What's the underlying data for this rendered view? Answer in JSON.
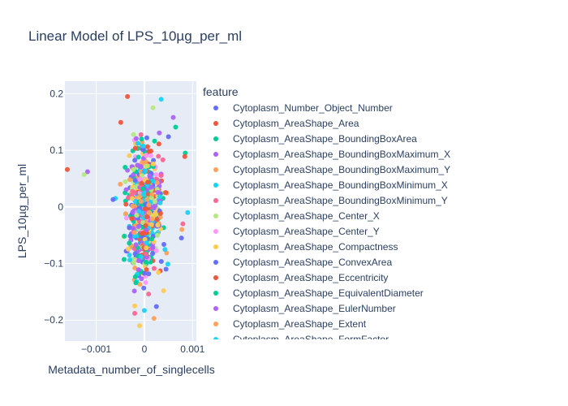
{
  "chart_data": {
    "type": "scatter",
    "title": "Linear Model of LPS_10µg_per_ml",
    "xlabel": "Metadata_number_of_singlecells",
    "ylabel": "LPS_10µg_per_ml",
    "xlim": [
      -0.00165,
      0.00108
    ],
    "ylim": [
      -0.237,
      0.222
    ],
    "x_ticks": [
      {
        "value": -0.001,
        "label": "−0.001"
      },
      {
        "value": 0,
        "label": "0"
      },
      {
        "value": 0.001,
        "label": "0.001"
      }
    ],
    "y_ticks": [
      {
        "value": -0.2,
        "label": "−0.2"
      },
      {
        "value": -0.1,
        "label": "−0.1"
      },
      {
        "value": 0,
        "label": "0"
      },
      {
        "value": 0.1,
        "label": "0.1"
      },
      {
        "value": 0.2,
        "label": "0.2"
      }
    ],
    "grid": true,
    "legend_title": "feature",
    "legend_position": "right",
    "series": [
      {
        "name": "Cytoplasm_Number_Object_Number",
        "color": "#636efa"
      },
      {
        "name": "Cytoplasm_AreaShape_Area",
        "color": "#EF553B"
      },
      {
        "name": "Cytoplasm_AreaShape_BoundingBoxArea",
        "color": "#00cc96"
      },
      {
        "name": "Cytoplasm_AreaShape_BoundingBoxMaximum_X",
        "color": "#ab63fa"
      },
      {
        "name": "Cytoplasm_AreaShape_BoundingBoxMaximum_Y",
        "color": "#FFA15A"
      },
      {
        "name": "Cytoplasm_AreaShape_BoundingBoxMinimum_X",
        "color": "#19d3f3"
      },
      {
        "name": "Cytoplasm_AreaShape_BoundingBoxMinimum_Y",
        "color": "#FF6692"
      },
      {
        "name": "Cytoplasm_AreaShape_Center_X",
        "color": "#B6E880"
      },
      {
        "name": "Cytoplasm_AreaShape_Center_Y",
        "color": "#FF97FF"
      },
      {
        "name": "Cytoplasm_AreaShape_Compactness",
        "color": "#FECB52"
      },
      {
        "name": "Cytoplasm_AreaShape_ConvexArea",
        "color": "#636efa"
      },
      {
        "name": "Cytoplasm_AreaShape_Eccentricity",
        "color": "#EF553B"
      },
      {
        "name": "Cytoplasm_AreaShape_EquivalentDiameter",
        "color": "#00cc96"
      },
      {
        "name": "Cytoplasm_AreaShape_EulerNumber",
        "color": "#ab63fa"
      },
      {
        "name": "Cytoplasm_AreaShape_Extent",
        "color": "#FFA15A"
      },
      {
        "name": "Cytoplasm_AreaShape_FormFactor",
        "color": "#19d3f3"
      }
    ],
    "points": [
      [
        -0.0016,
        0.066,
        1
      ],
      [
        -0.00118,
        0.062,
        3
      ],
      [
        -0.00125,
        0.057,
        7
      ],
      [
        -0.0006,
        0.015,
        5
      ],
      [
        -0.00065,
        0.013,
        0
      ],
      [
        0.00085,
        0.095,
        2
      ],
      [
        0.00084,
        0.089,
        1
      ],
      [
        0.00078,
        -0.04,
        4
      ],
      [
        0.00077,
        -0.055,
        0
      ],
      [
        0.0009,
        -0.01,
        5
      ],
      [
        -0.00035,
        0.195,
        1
      ],
      [
        -0.0002,
        -0.175,
        9
      ],
      [
        -0.0001,
        -0.21,
        9
      ],
      [
        0,
        -0.183,
        5
      ],
      [
        0.0002,
        -0.197,
        4
      ],
      [
        0.00035,
        0.19,
        5
      ],
      [
        -0.0002,
        -0.188,
        6
      ],
      [
        0.0006,
        0.158,
        3
      ],
      [
        0.0005,
        0.124,
        10
      ],
      [
        0.00065,
        0.141,
        2
      ],
      [
        0.00025,
        -0.176,
        0
      ],
      [
        0.0004,
        -0.148,
        9
      ],
      [
        0.00045,
        -0.11,
        0
      ],
      [
        -0.0004,
        0.07,
        2
      ],
      [
        -0.0005,
        0.04,
        4
      ],
      [
        0.0008,
        -0.03,
        6
      ]
    ]
  }
}
